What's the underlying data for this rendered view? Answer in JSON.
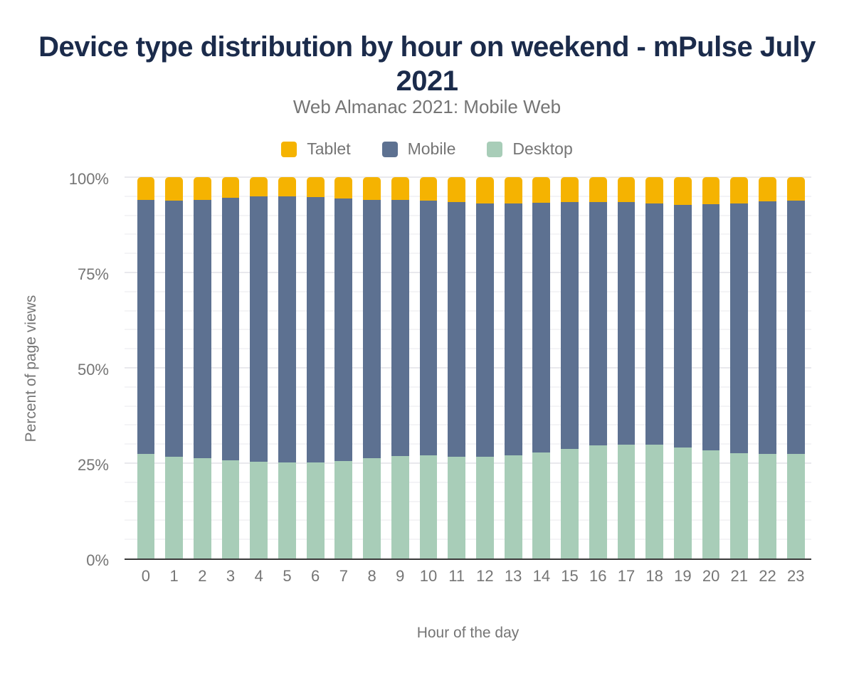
{
  "chart": {
    "title": "Device type distribution by hour on weekend - mPulse July 2021",
    "subtitle": "Web Almanac 2021: Mobile Web",
    "xlabel": "Hour of the day",
    "ylabel": "Percent of page views"
  },
  "colors": {
    "title": "#1b2b4b",
    "axis_text": "#757575",
    "tablet": "#f5b301",
    "mobile": "#5d7191",
    "desktop": "#a8cdb8",
    "background": "#ffffff"
  },
  "chart_data": {
    "type": "bar",
    "stacked": true,
    "title": "Device type distribution by hour on weekend - mPulse July 2021",
    "subtitle": "Web Almanac 2021: Mobile Web",
    "xlabel": "Hour of the day",
    "ylabel": "Percent of page views",
    "ylim": [
      0,
      100
    ],
    "grid": "horizontal, minor every 5%, major every 25%",
    "legend_position": "top",
    "y_ticks": [
      "0%",
      "25%",
      "50%",
      "75%",
      "100%"
    ],
    "y_tick_values": [
      0,
      25,
      50,
      75,
      100
    ],
    "categories": [
      "0",
      "1",
      "2",
      "3",
      "4",
      "5",
      "6",
      "7",
      "8",
      "9",
      "10",
      "11",
      "12",
      "13",
      "14",
      "15",
      "16",
      "17",
      "18",
      "19",
      "20",
      "21",
      "22",
      "23"
    ],
    "series": [
      {
        "name": "Tablet",
        "color": "#f5b301",
        "values": [
          5.9,
          6.1,
          5.9,
          5.5,
          5.1,
          5.0,
          5.3,
          5.6,
          5.9,
          5.9,
          6.1,
          6.6,
          6.9,
          6.9,
          6.7,
          6.5,
          6.5,
          6.5,
          6.9,
          7.2,
          7.1,
          6.9,
          6.4,
          6.1
        ]
      },
      {
        "name": "Mobile",
        "color": "#5d7191",
        "values": [
          66.7,
          67.2,
          67.8,
          68.8,
          69.5,
          69.9,
          69.6,
          68.9,
          67.7,
          67.2,
          66.9,
          66.8,
          66.5,
          66.1,
          65.5,
          64.8,
          63.8,
          63.6,
          63.2,
          63.7,
          64.5,
          65.5,
          66.2,
          66.4
        ]
      },
      {
        "name": "Desktop",
        "color": "#a8cdb8",
        "values": [
          27.4,
          26.7,
          26.3,
          25.7,
          25.4,
          25.1,
          25.1,
          25.5,
          26.4,
          26.9,
          27.0,
          26.6,
          26.6,
          27.0,
          27.8,
          28.7,
          29.7,
          29.9,
          29.9,
          29.1,
          28.4,
          27.6,
          27.4,
          27.5
        ]
      }
    ]
  }
}
